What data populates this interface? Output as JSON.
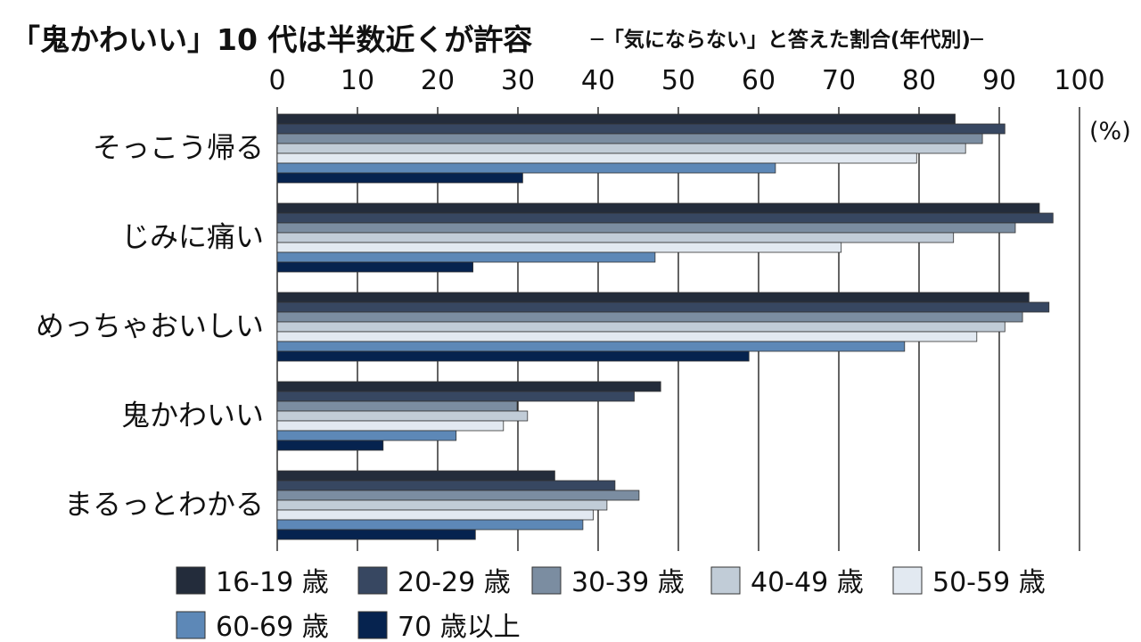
{
  "chart_data": {
    "type": "bar",
    "orientation": "horizontal",
    "title": "「鬼かわいい」10 代は半数近くが許容",
    "subtitle": "─「気にならない」と答えた割合(年代別)─",
    "unit_label": "(%)",
    "xlim": [
      0,
      100
    ],
    "x_ticks": [
      "0",
      "10",
      "20",
      "30",
      "40",
      "50",
      "60",
      "70",
      "80",
      "90",
      "100"
    ],
    "grid": true,
    "legend_position": "bottom",
    "categories": [
      "そっこう帰る",
      "じみに痛い",
      "めっちゃおいしい",
      "鬼かわいい",
      "まるっとわかる"
    ],
    "series": [
      {
        "name": "16-19 歳",
        "color": "#232c3b",
        "values": [
          84.5,
          95,
          93.7,
          47.8,
          34.6
        ]
      },
      {
        "name": "20-29 歳",
        "color": "#374761",
        "values": [
          90.7,
          96.7,
          96.2,
          44.5,
          42.1
        ]
      },
      {
        "name": "30-39 歳",
        "color": "#7b8da1",
        "values": [
          87.9,
          92,
          92.9,
          29.9,
          45.1
        ]
      },
      {
        "name": "40-49 歳",
        "color": "#c1ccd7",
        "values": [
          85.8,
          84.3,
          90.7,
          31.2,
          41.1
        ]
      },
      {
        "name": "50-59 歳",
        "color": "#e2e9f1",
        "values": [
          79.7,
          70.3,
          87.2,
          28.2,
          39.4
        ]
      },
      {
        "name": "60-69 歳",
        "color": "#5d88b7",
        "values": [
          62.1,
          47.1,
          78.2,
          22.3,
          38.1
        ]
      },
      {
        "name": "70 歳以上",
        "color": "#06234f",
        "values": [
          30.6,
          24.4,
          58.8,
          13.2,
          24.7
        ]
      }
    ]
  }
}
